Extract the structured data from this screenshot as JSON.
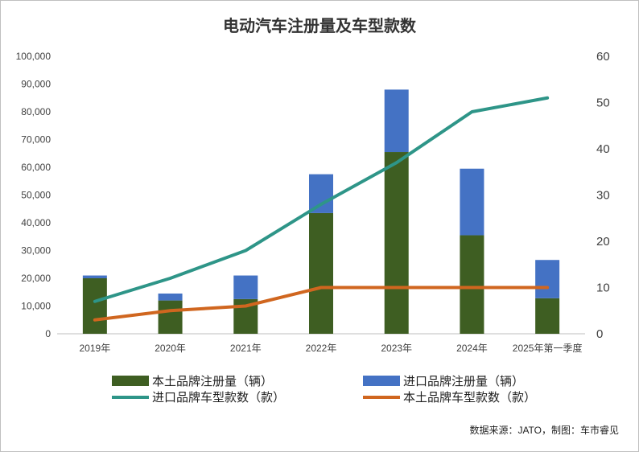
{
  "chart_data": {
    "type": "bar",
    "title": "电动汽车注册量及车型款数",
    "categories": [
      "2019年",
      "2020年",
      "2021年",
      "2022年",
      "2023年",
      "2024年",
      "2025年第一季度"
    ],
    "stacked": true,
    "series": [
      {
        "name": "本土品牌注册量（辆）",
        "type": "bar",
        "axis": "left",
        "color": "#3e5e22",
        "values": [
          20000,
          12000,
          12500,
          43500,
          65500,
          35500,
          12800
        ]
      },
      {
        "name": "进口品牌注册量（辆）",
        "type": "bar",
        "axis": "left",
        "color": "#4472c4",
        "values": [
          1000,
          2500,
          8500,
          14000,
          22500,
          24000,
          13800
        ]
      },
      {
        "name": "进口品牌车型款数（款）",
        "type": "line",
        "axis": "right",
        "color": "#2e9588",
        "values": [
          7,
          12,
          18,
          28,
          37,
          48,
          51
        ]
      },
      {
        "name": "本土品牌车型款数（款）",
        "type": "line",
        "axis": "right",
        "color": "#d0661f",
        "values": [
          3,
          5,
          6,
          10,
          10,
          10,
          10
        ]
      }
    ],
    "ylim": [
      0,
      100000
    ],
    "yticks": [
      "0",
      "10,000",
      "20,000",
      "30,000",
      "40,000",
      "50,000",
      "60,000",
      "70,000",
      "80,000",
      "90,000",
      "100,000"
    ],
    "y2lim": [
      0,
      60
    ],
    "y2ticks": [
      "0",
      "10",
      "20",
      "30",
      "40",
      "50",
      "60"
    ],
    "grid": false,
    "legend_position": "bottom",
    "source": "数据来源：JATO，制图：车市睿见"
  }
}
